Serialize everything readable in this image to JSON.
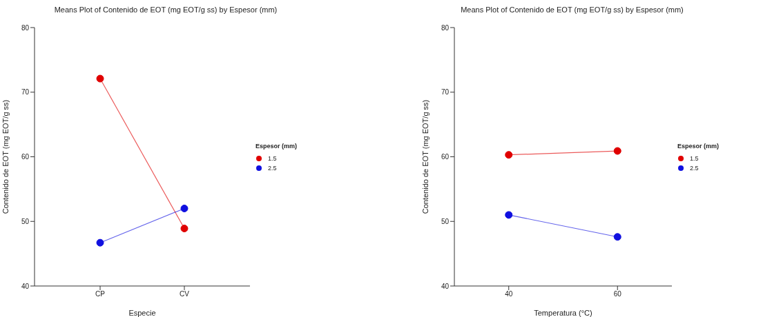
{
  "chart_data": [
    {
      "type": "line",
      "title": "Means Plot of Contenido de EOT (mg EOT/g ss) by Espesor (mm)",
      "xlabel": "Especie",
      "ylabel": "Contenido de EOT (mg EOT/g ss)",
      "legend_title": "Espesor (mm)",
      "categories": [
        "CP",
        "CV"
      ],
      "ylim": [
        40,
        80
      ],
      "yticks": [
        40,
        50,
        60,
        70,
        80
      ],
      "legend": "right",
      "marker": "circle",
      "line_style": "solid",
      "series": [
        {
          "name": "1.5",
          "color": "#e00000",
          "values": [
            72.1,
            48.9
          ]
        },
        {
          "name": "2.5",
          "color": "#1010e0",
          "values": [
            46.7,
            52.0
          ]
        }
      ]
    },
    {
      "type": "line",
      "title": "Means Plot of Contenido de EOT (mg EOT/g ss) by Espesor (mm)",
      "xlabel": "Temperatura (°C)",
      "ylabel": "Contenido de EOT (mg EOT/g ss)",
      "legend_title": "Espesor (mm)",
      "x": [
        40,
        60
      ],
      "xlim": [
        30,
        70
      ],
      "xticks": [
        40,
        60
      ],
      "ylim": [
        40,
        80
      ],
      "yticks": [
        40,
        50,
        60,
        70,
        80
      ],
      "legend": "right",
      "marker": "circle",
      "line_style": "solid",
      "series": [
        {
          "name": "1.5",
          "color": "#e00000",
          "values": [
            60.3,
            60.9
          ]
        },
        {
          "name": "2.5",
          "color": "#1010e0",
          "values": [
            51.0,
            47.6
          ]
        }
      ]
    }
  ]
}
